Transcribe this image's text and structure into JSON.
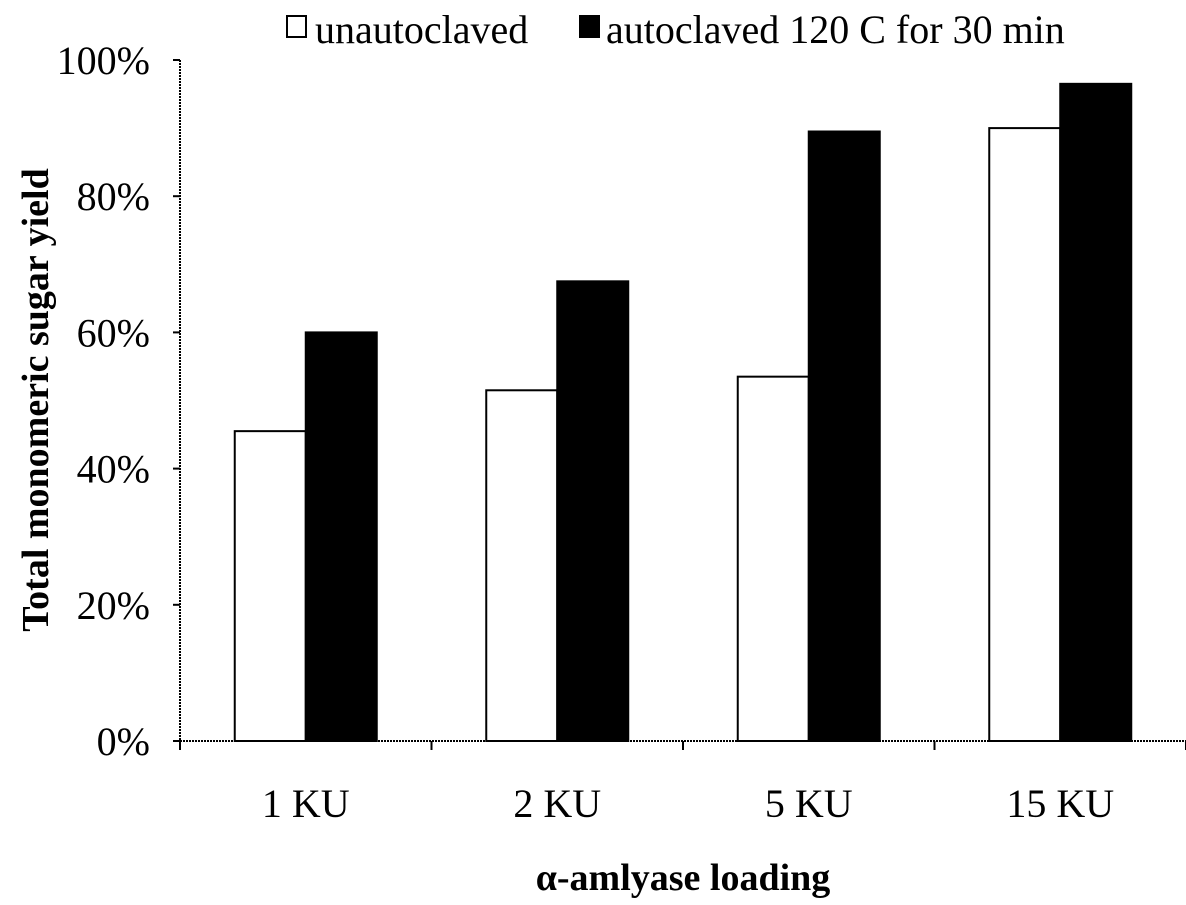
{
  "chart_data": {
    "type": "bar",
    "categories": [
      "1 KU",
      "2 KU",
      "5 KU",
      "15 KU"
    ],
    "series": [
      {
        "name": "unautoclaved",
        "values": [
          45.5,
          51.5,
          53.5,
          90.0
        ],
        "color": "#ffffff"
      },
      {
        "name": "autoclaved 120 C for 30 min",
        "values": [
          60.0,
          67.5,
          89.5,
          96.5
        ],
        "color": "#000000"
      }
    ],
    "title": "",
    "xlabel": "α-amlyase loading",
    "ylabel": "Total monomeric sugar yield",
    "ylim": [
      0,
      100
    ],
    "yticks": [
      "0%",
      "20%",
      "40%",
      "60%",
      "80%",
      "100%"
    ],
    "y_unit": "%",
    "grid": false,
    "legend_position": "top"
  }
}
